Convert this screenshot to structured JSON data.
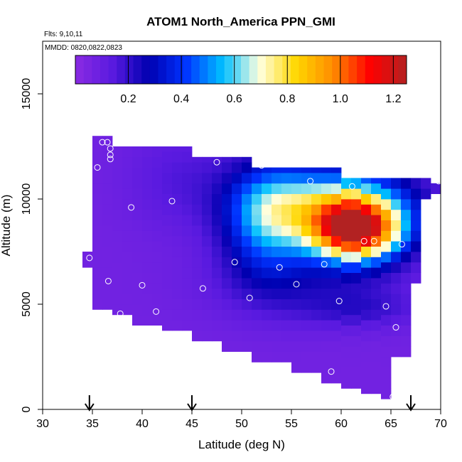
{
  "chart_data": {
    "type": "heatmap",
    "title": "ATOM1 North_America PPN_GMI",
    "annotations": [
      "Flts: 9,10,11",
      "MMDD: 0820,0822,0823"
    ],
    "xlabel": "Latitude (deg N)",
    "ylabel": "Altitude (m)",
    "xlim": [
      30,
      70
    ],
    "ylim": [
      0,
      17500
    ],
    "x_ticks": [
      30,
      35,
      40,
      45,
      50,
      55,
      60,
      65,
      70
    ],
    "x_tick_labels": [
      "30",
      "35",
      "40",
      "45",
      "50",
      "55",
      "60",
      "65",
      "70"
    ],
    "y_ticks": [
      0,
      5000,
      10000,
      15000
    ],
    "y_tick_labels": [
      "0",
      "5000",
      "10000",
      "15000"
    ],
    "colorbar": {
      "range": [
        0,
        1.25
      ],
      "ticks": [
        0.2,
        0.4,
        0.6,
        0.8,
        1.0,
        1.2
      ],
      "tick_labels": [
        "0.2",
        "0.4",
        "0.6",
        "0.8",
        "1.0",
        "1.2"
      ],
      "colors": [
        "#8a2be2",
        "#5a1ae0",
        "#0000b0",
        "#0033ff",
        "#00bfff",
        "#ffffe0",
        "#ffd700",
        "#ff8c00",
        "#ff0000",
        "#b22222"
      ]
    },
    "grid": false,
    "cell_size": {
      "lat": 1,
      "alt_m": 500
    },
    "columns": [
      {
        "lat_start": 34,
        "alt_min_m": 6750,
        "alt_max_m": 7500
      },
      {
        "lat_start": 35,
        "alt_min_m": 4750,
        "alt_max_m": 13000
      },
      {
        "lat_start": 37,
        "alt_min_m": 4500,
        "alt_max_m": 12500
      },
      {
        "lat_start": 39,
        "alt_min_m": 4000,
        "alt_max_m": 12500
      },
      {
        "lat_start": 42,
        "alt_min_m": 3750,
        "alt_max_m": 12500
      },
      {
        "lat_start": 45,
        "alt_min_m": 3250,
        "alt_max_m": 12000
      },
      {
        "lat_start": 48,
        "alt_min_m": 2750,
        "alt_max_m": 12000
      },
      {
        "lat_start": 51,
        "alt_min_m": 2250,
        "alt_max_m": 11500
      },
      {
        "lat_start": 55,
        "alt_min_m": 1750,
        "alt_max_m": 11500
      },
      {
        "lat_start": 58,
        "alt_min_m": 1250,
        "alt_max_m": 11500
      },
      {
        "lat_start": 60,
        "alt_min_m": 1000,
        "alt_max_m": 11000
      },
      {
        "lat_start": 62,
        "alt_min_m": 750,
        "alt_max_m": 11000
      },
      {
        "lat_start": 64,
        "alt_min_m": 500,
        "alt_max_m": 11000
      },
      {
        "lat_start": 65,
        "alt_min_m": 2500,
        "alt_max_m": 11000
      },
      {
        "lat_start": 66,
        "alt_min_m": 2500,
        "alt_max_m": 11000
      },
      {
        "lat_start": 67,
        "alt_min_m": 6000,
        "alt_max_m": 11000
      },
      {
        "lat_start": 68,
        "alt_min_m": 10000,
        "alt_max_m": 11000
      },
      {
        "lat_start": 69,
        "alt_min_m": 10250,
        "alt_max_m": 10750
      }
    ],
    "features": [
      {
        "lat": 61.5,
        "alt_m": 8500,
        "sigma_lat": 3.2,
        "sigma_alt_m": 1000,
        "amp": 1.02
      },
      {
        "lat": 59.5,
        "alt_m": 9750,
        "sigma_lat": 5.5,
        "sigma_alt_m": 1300,
        "amp": 0.55
      },
      {
        "lat": 52.5,
        "alt_m": 9000,
        "sigma_lat": 3.0,
        "sigma_alt_m": 1900,
        "amp": 0.38
      },
      {
        "lat": 57,
        "alt_m": 6000,
        "sigma_lat": 7.0,
        "sigma_alt_m": 1300,
        "amp": 0.12
      },
      {
        "lat": 44,
        "alt_m": 11000,
        "sigma_lat": 4.0,
        "sigma_alt_m": 1800,
        "amp": 0.08
      },
      {
        "lat": 62,
        "alt_m": 4750,
        "sigma_lat": 4.0,
        "sigma_alt_m": 600,
        "amp": 0.09
      }
    ],
    "base_value": 0.07,
    "sample_points": [
      {
        "lat": 34.7,
        "alt_m": 7200
      },
      {
        "lat": 35.5,
        "alt_m": 11500
      },
      {
        "lat": 36.0,
        "alt_m": 12700
      },
      {
        "lat": 36.5,
        "alt_m": 12700
      },
      {
        "lat": 36.8,
        "alt_m": 12400
      },
      {
        "lat": 36.8,
        "alt_m": 12100
      },
      {
        "lat": 36.8,
        "alt_m": 11900
      },
      {
        "lat": 36.6,
        "alt_m": 6100
      },
      {
        "lat": 37.8,
        "alt_m": 4550
      },
      {
        "lat": 38.9,
        "alt_m": 9600
      },
      {
        "lat": 40.0,
        "alt_m": 5900
      },
      {
        "lat": 41.4,
        "alt_m": 4650
      },
      {
        "lat": 43.0,
        "alt_m": 9900
      },
      {
        "lat": 46.1,
        "alt_m": 5750
      },
      {
        "lat": 47.5,
        "alt_m": 11750
      },
      {
        "lat": 49.3,
        "alt_m": 7000
      },
      {
        "lat": 50.8,
        "alt_m": 5300
      },
      {
        "lat": 52.0,
        "alt_m": 11600
      },
      {
        "lat": 53.8,
        "alt_m": 6750
      },
      {
        "lat": 55.5,
        "alt_m": 5950
      },
      {
        "lat": 56.9,
        "alt_m": 10850
      },
      {
        "lat": 58.3,
        "alt_m": 6900
      },
      {
        "lat": 59.0,
        "alt_m": 1800
      },
      {
        "lat": 59.8,
        "alt_m": 5150
      },
      {
        "lat": 61.1,
        "alt_m": 10600
      },
      {
        "lat": 62.3,
        "alt_m": 8000
      },
      {
        "lat": 63.3,
        "alt_m": 8000
      },
      {
        "lat": 64.5,
        "alt_m": 4900
      },
      {
        "lat": 65.2,
        "alt_m": 600
      },
      {
        "lat": 65.5,
        "alt_m": 3900
      },
      {
        "lat": 66.1,
        "alt_m": 7850
      },
      {
        "lat": 69.8,
        "alt_m": 10850
      }
    ],
    "arrows_lat": [
      34.7,
      45.0,
      67.0
    ]
  }
}
